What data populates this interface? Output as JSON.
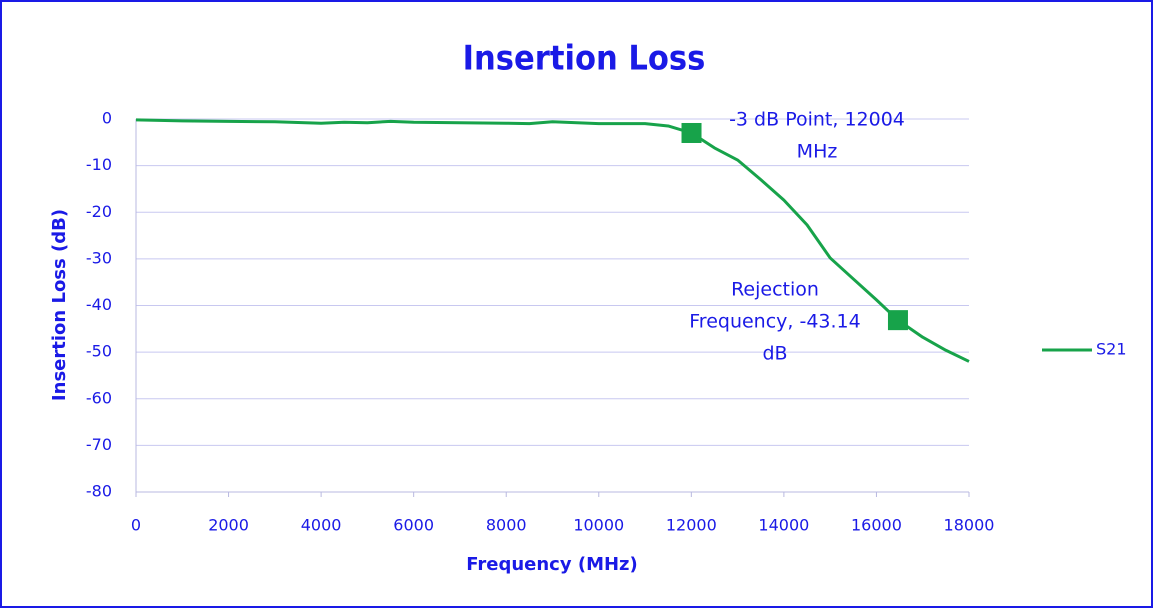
{
  "chart_data": {
    "type": "line",
    "title": "Insertion Loss",
    "xlabel": "Frequency (MHz)",
    "ylabel": "Insertion Loss (dB)",
    "xlim": [
      0,
      18000
    ],
    "ylim": [
      -80,
      0
    ],
    "xticks": [
      0,
      2000,
      4000,
      6000,
      8000,
      10000,
      12000,
      14000,
      16000,
      18000
    ],
    "yticks": [
      0,
      -10,
      -20,
      -30,
      -40,
      -50,
      -60,
      -70,
      -80
    ],
    "grid": true,
    "legend": "right",
    "series": [
      {
        "name": "S21",
        "color": "#17a34a",
        "x": [
          0,
          1000,
          2000,
          3000,
          4000,
          4500,
          5000,
          5500,
          6000,
          7000,
          8000,
          8500,
          9000,
          10000,
          11000,
          11500,
          12004,
          12500,
          13000,
          13500,
          14000,
          14500,
          15000,
          15500,
          16000,
          16465,
          17000,
          17500,
          18000
        ],
        "values": [
          -0.2,
          -0.4,
          -0.5,
          -0.6,
          -0.9,
          -0.7,
          -0.8,
          -0.5,
          -0.7,
          -0.8,
          -0.9,
          -1.0,
          -0.6,
          -1.0,
          -1.0,
          -1.5,
          -3,
          -6.2,
          -8.8,
          -13,
          -17.4,
          -22.7,
          -29.8,
          -34.3,
          -38.8,
          -43.14,
          -46.8,
          -49.6,
          -52
        ]
      }
    ],
    "annotations": [
      {
        "lines": [
          "-3 dB Point, 12004",
          "MHz"
        ],
        "x": 12004,
        "value": -3
      },
      {
        "lines": [
          "Rejection",
          "Frequency, -43.14",
          "dB"
        ],
        "x": 16465,
        "value": -43.14
      }
    ]
  }
}
